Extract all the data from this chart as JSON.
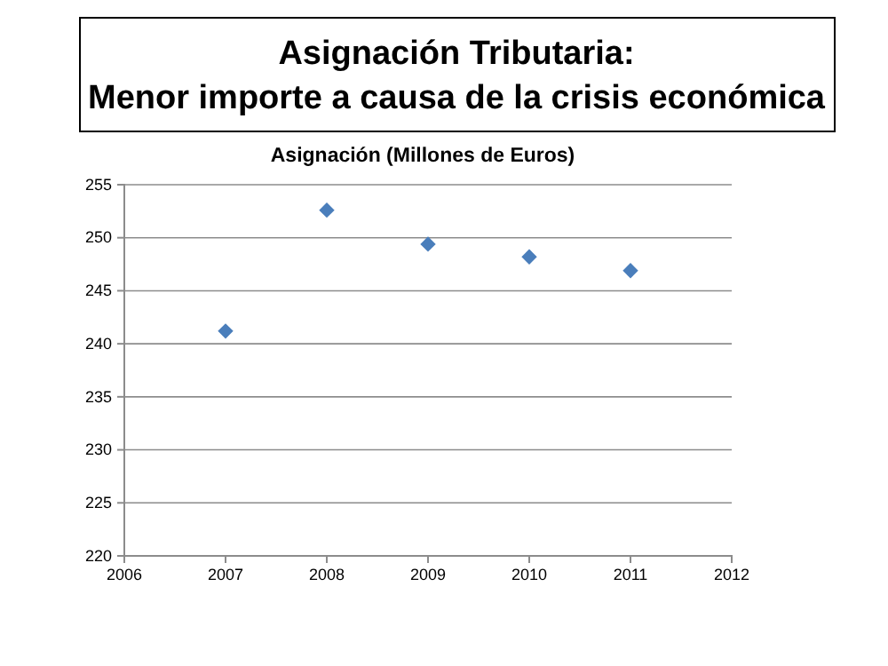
{
  "chart_data": {
    "type": "scatter",
    "title": "Asignación Tributaria:\nMenor importe a causa de la crisis económica",
    "subtitle": "Asignación (Millones de Euros)",
    "x": [
      2007,
      2008,
      2009,
      2010,
      2011
    ],
    "series": [
      {
        "color": "#4a7ebb",
        "values": [
          241.2,
          252.6,
          249.4,
          248.2,
          246.9
        ]
      }
    ],
    "xlim": [
      2006,
      2012
    ],
    "xticks": [
      2006,
      2007,
      2008,
      2009,
      2010,
      2011,
      2012
    ],
    "ylim": [
      220,
      255
    ],
    "yticks": [
      220,
      225,
      230,
      235,
      240,
      245,
      250,
      255
    ],
    "grid": "y",
    "marker": "diamond",
    "legend": false
  }
}
